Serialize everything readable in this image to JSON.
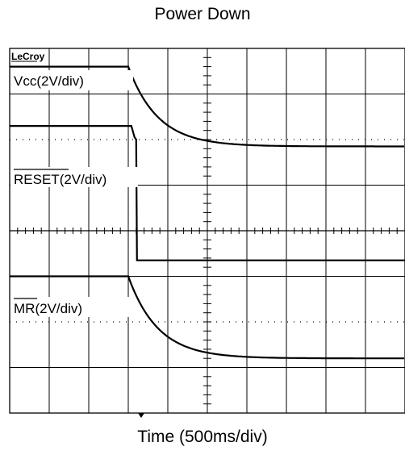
{
  "chart_data": {
    "type": "line",
    "title": "Power Down",
    "xlabel": "Time (500ms/div)",
    "brand": "LeCroy",
    "grid": true,
    "divisions": {
      "x": 10,
      "y": 8
    },
    "series": [
      {
        "name": "Vcc(2V/div)",
        "overline": "",
        "suffix": "",
        "level_high_div": 7.6,
        "level_low_div": 5.85,
        "drop_div": 3.0,
        "tau_div": 0.75,
        "kind": "decay"
      },
      {
        "name": "RESET(2V/div)",
        "overline": "RESET",
        "suffix": "(2V/div)",
        "level_high_div": 6.3,
        "level_low_div": 3.35,
        "drop_div": 3.2,
        "kind": "step"
      },
      {
        "name": "MR(2V/div)",
        "overline": "MR",
        "suffix": "(2V/div)",
        "level_high_div": 3.0,
        "level_low_div": 1.2,
        "drop_div": 3.0,
        "tau_div": 0.75,
        "kind": "decay"
      }
    ]
  }
}
